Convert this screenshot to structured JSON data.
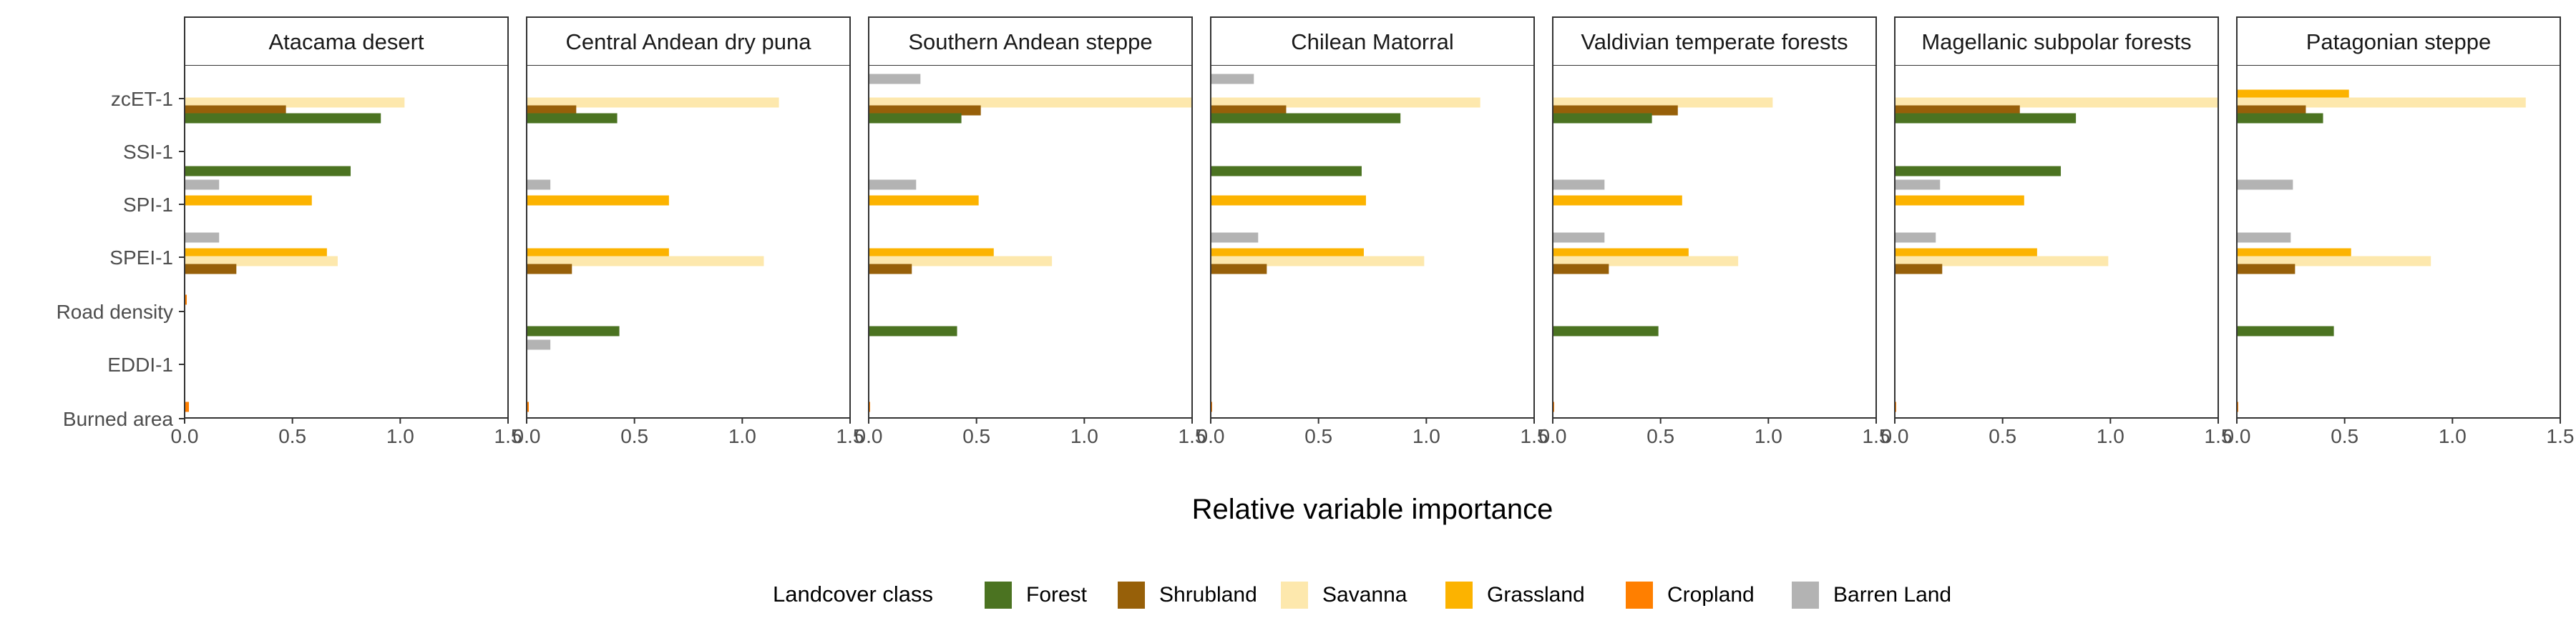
{
  "chart_data": {
    "type": "bar",
    "orientation": "horizontal",
    "facet_layout": "1 row x 7 panels",
    "xlabel": "Relative variable importance",
    "ylabel": "",
    "xlim": [
      0,
      1.5
    ],
    "xticks": [
      "0.0",
      "0.5",
      "1.0",
      "1.5"
    ],
    "grid": false,
    "variables": [
      "zcET-1",
      "SSI-1",
      "SPI-1",
      "SPEI-1",
      "Road density",
      "EDDI-1",
      "Burned area"
    ],
    "classes": [
      {
        "name": "Forest",
        "color": "#4b7321"
      },
      {
        "name": "Shrubland",
        "color": "#976009"
      },
      {
        "name": "Savanna",
        "color": "#fde8ad"
      },
      {
        "name": "Grassland",
        "color": "#fcb300"
      },
      {
        "name": "Cropland",
        "color": "#ff7f00"
      },
      {
        "name": "Barren Land",
        "color": "#b3b3b3"
      }
    ],
    "legend": {
      "title": "Landcover class",
      "position": "bottom"
    },
    "panels": [
      {
        "title": "Atacama desert",
        "bars": {
          "zcET-1": {
            "Savanna": 1.02,
            "Shrubland": 0.47,
            "Forest": 0.91
          },
          "SSI-1": {
            "Forest": 0.77
          },
          "SPI-1": {
            "Barren Land": 0.16,
            "Grassland": 0.59
          },
          "SPEI-1": {
            "Barren Land": 0.16,
            "Grassland": 0.66,
            "Savanna": 0.71,
            "Shrubland": 0.24
          },
          "Road density": {
            "Cropland": 0.01
          },
          "EDDI-1": {},
          "Burned area": {
            "Cropland": 0.02
          }
        }
      },
      {
        "title": "Central Andean dry puna",
        "bars": {
          "zcET-1": {
            "Savanna": 1.17,
            "Shrubland": 0.23,
            "Forest": 0.42
          },
          "SSI-1": {},
          "SPI-1": {
            "Barren Land": 0.11,
            "Grassland": 0.66
          },
          "SPEI-1": {
            "Grassland": 0.66,
            "Savanna": 1.1,
            "Shrubland": 0.21
          },
          "Road density": {
            "Forest": 0.43
          },
          "EDDI-1": {
            "Barren Land": 0.11
          },
          "Burned area": {
            "Cropland": 0.01
          }
        }
      },
      {
        "title": "Southern Andean steppe",
        "bars": {
          "zcET-1": {
            "Barren Land": 0.24,
            "Savanna": 1.55,
            "Shrubland": 0.52,
            "Forest": 0.43
          },
          "SSI-1": {},
          "SPI-1": {
            "Barren Land": 0.22,
            "Grassland": 0.51
          },
          "SPEI-1": {
            "Grassland": 0.58,
            "Savanna": 0.85,
            "Shrubland": 0.2
          },
          "Road density": {
            "Forest": 0.41
          },
          "EDDI-1": {},
          "Burned area": {
            "Cropland": 0.005
          }
        }
      },
      {
        "title": "Chilean Matorral",
        "bars": {
          "zcET-1": {
            "Barren Land": 0.2,
            "Savanna": 1.25,
            "Shrubland": 0.35,
            "Forest": 0.88
          },
          "SSI-1": {
            "Forest": 0.7
          },
          "SPI-1": {
            "Grassland": 0.72
          },
          "SPEI-1": {
            "Barren Land": 0.22,
            "Grassland": 0.71,
            "Savanna": 0.99,
            "Shrubland": 0.26
          },
          "Road density": {},
          "EDDI-1": {},
          "Burned area": {
            "Cropland": 0.005
          }
        }
      },
      {
        "title": "Valdivian temperate forests",
        "bars": {
          "zcET-1": {
            "Savanna": 1.02,
            "Shrubland": 0.58,
            "Forest": 0.46
          },
          "SSI-1": {},
          "SPI-1": {
            "Barren Land": 0.24,
            "Grassland": 0.6
          },
          "SPEI-1": {
            "Barren Land": 0.24,
            "Grassland": 0.63,
            "Savanna": 0.86,
            "Shrubland": 0.26
          },
          "Road density": {
            "Forest": 0.49
          },
          "EDDI-1": {},
          "Burned area": {
            "Cropland": 0.005
          }
        }
      },
      {
        "title": "Magellanic subpolar forests",
        "bars": {
          "zcET-1": {
            "Savanna": 1.52,
            "Shrubland": 0.58,
            "Forest": 0.84
          },
          "SSI-1": {
            "Forest": 0.77
          },
          "SPI-1": {
            "Barren Land": 0.21,
            "Grassland": 0.6
          },
          "SPEI-1": {
            "Barren Land": 0.19,
            "Grassland": 0.66,
            "Savanna": 0.99,
            "Shrubland": 0.22
          },
          "Road density": {},
          "EDDI-1": {},
          "Burned area": {
            "Cropland": 0.005
          }
        }
      },
      {
        "title": "Patagonian steppe",
        "bars": {
          "zcET-1": {
            "Grassland": 0.52,
            "Savanna": 1.34,
            "Shrubland": 0.32,
            "Forest": 0.4
          },
          "SSI-1": {},
          "SPI-1": {
            "Barren Land": 0.26
          },
          "SPEI-1": {
            "Barren Land": 0.25,
            "Grassland": 0.53,
            "Savanna": 0.9,
            "Shrubland": 0.27
          },
          "Road density": {
            "Forest": 0.45
          },
          "EDDI-1": {},
          "Burned area": {
            "Cropland": 0.005
          }
        }
      }
    ]
  }
}
